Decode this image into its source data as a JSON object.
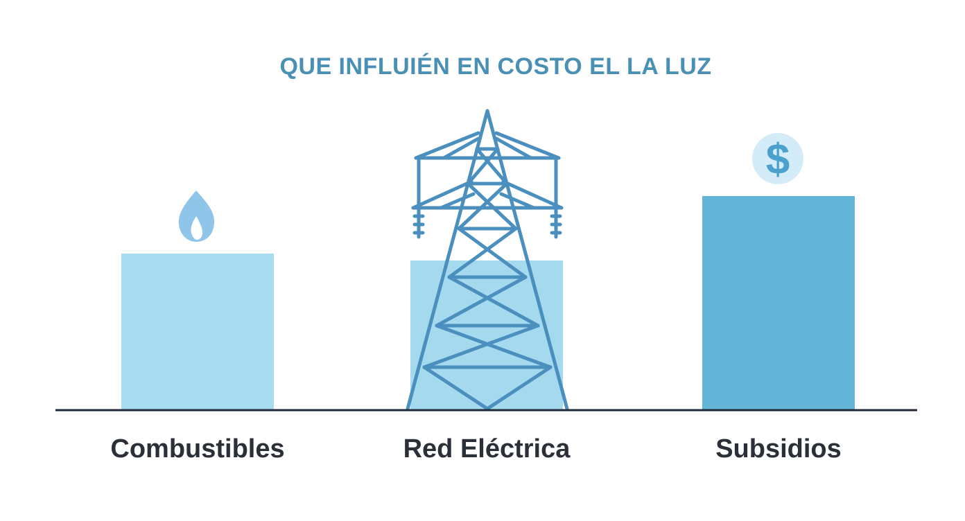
{
  "chart_data": {
    "type": "bar",
    "title": "QUE INFLUIÉN EN COSTO EL LA LUZ",
    "categories": [
      "Combustibles",
      "Red Eléctrica",
      "Subsidios"
    ],
    "values": [
      225,
      215,
      308
    ],
    "xlabel": "",
    "ylabel": "",
    "ylim": [
      0,
      430
    ],
    "grid": false,
    "legend": "none",
    "icons": [
      "flame-icon",
      "transmission-tower-icon",
      "dollar-coin-icon"
    ]
  },
  "colors": {
    "title": "#4a90b5",
    "bars": [
      "#a7dcf0",
      "#a4d9ee",
      "#62b5d6"
    ],
    "icons": "#4a8fbe",
    "flame": "#8fc5e8",
    "coin_bg": "#d4ecf7",
    "coin_fg": "#4aa1cd",
    "axis": "#1f2937",
    "labels": "#2b2f38"
  }
}
